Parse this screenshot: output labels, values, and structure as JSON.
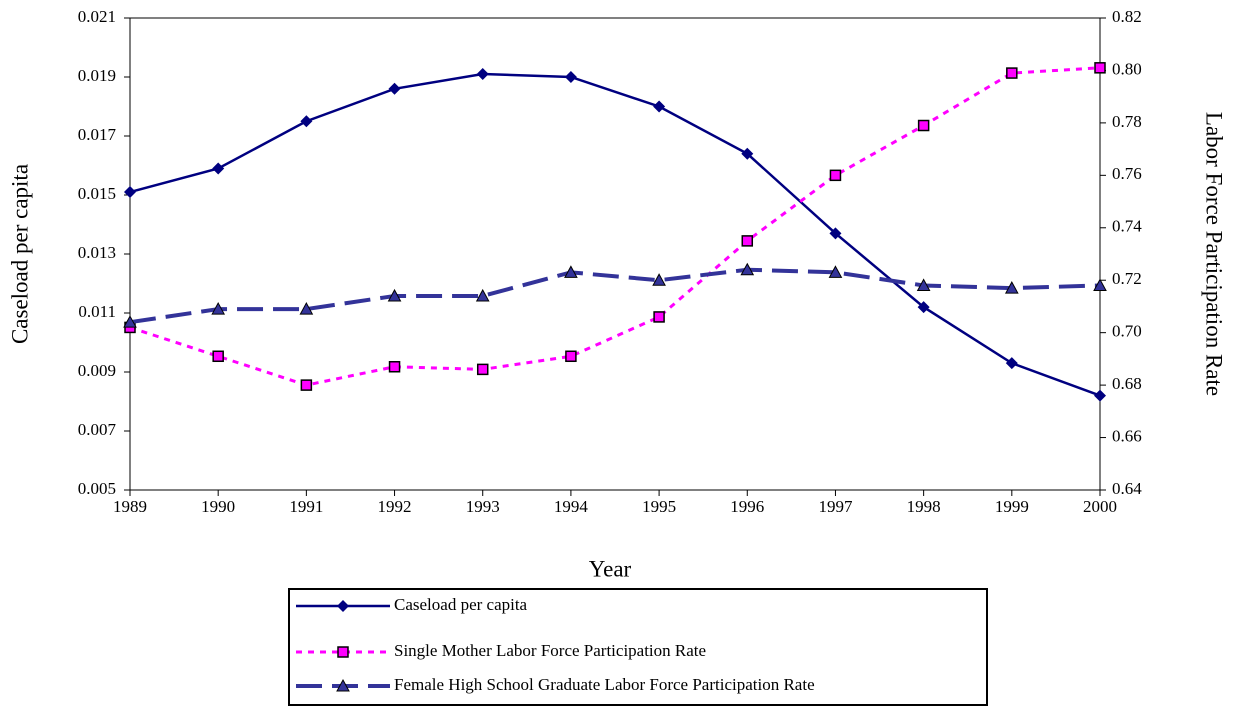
{
  "chart_data": {
    "type": "line",
    "x_label": "Year",
    "y_label": "Caseload per capita",
    "y2_label": "Labor Force Participation Rate",
    "x": [
      1989,
      1990,
      1991,
      1992,
      1993,
      1994,
      1995,
      1996,
      1997,
      1998,
      1999,
      2000
    ],
    "xlim": [
      1989,
      2000
    ],
    "xticks": [
      1989,
      1990,
      1991,
      1992,
      1993,
      1994,
      1995,
      1996,
      1997,
      1998,
      1999,
      2000
    ],
    "ylim": [
      0.005,
      0.021
    ],
    "yticks": [
      0.005,
      0.007,
      0.009,
      0.011,
      0.013,
      0.015,
      0.017,
      0.019,
      0.021
    ],
    "y2lim": [
      0.64,
      0.82
    ],
    "y2ticks": [
      0.64,
      0.66,
      0.68,
      {
        "value": 0.7,
        "label": "0.70"
      },
      0.72,
      0.74,
      0.76,
      0.78,
      {
        "value": 0.8,
        "label": "0.80"
      },
      0.82
    ],
    "grid": false,
    "legend": "bottom",
    "series": [
      {
        "name": "Caseload per capita",
        "color": "#000080",
        "line_style": "solid",
        "marker": "diamond",
        "values": [
          0.0151,
          0.0159,
          0.0175,
          0.0186,
          0.0191,
          0.019,
          0.018,
          0.0164,
          0.0137,
          0.0112,
          0.0093,
          0.0082
        ]
      },
      {
        "name": "Single Mother Labor Force Participation Rate",
        "color": "#ff00ff",
        "line_style": "dotted",
        "marker": "square",
        "axis": "y2",
        "values": [
          0.702,
          0.691,
          0.68,
          0.687,
          0.686,
          0.691,
          0.706,
          0.735,
          0.76,
          0.779,
          0.799,
          0.801
        ]
      },
      {
        "name": "Female High School Graduate Labor Force Participation Rate",
        "color": "#333399",
        "line_style": "dashed",
        "marker": "triangle",
        "axis": "y2",
        "values": [
          0.704,
          0.709,
          0.709,
          0.714,
          0.714,
          0.723,
          0.72,
          0.724,
          0.723,
          0.718,
          0.717,
          0.718
        ]
      }
    ]
  }
}
